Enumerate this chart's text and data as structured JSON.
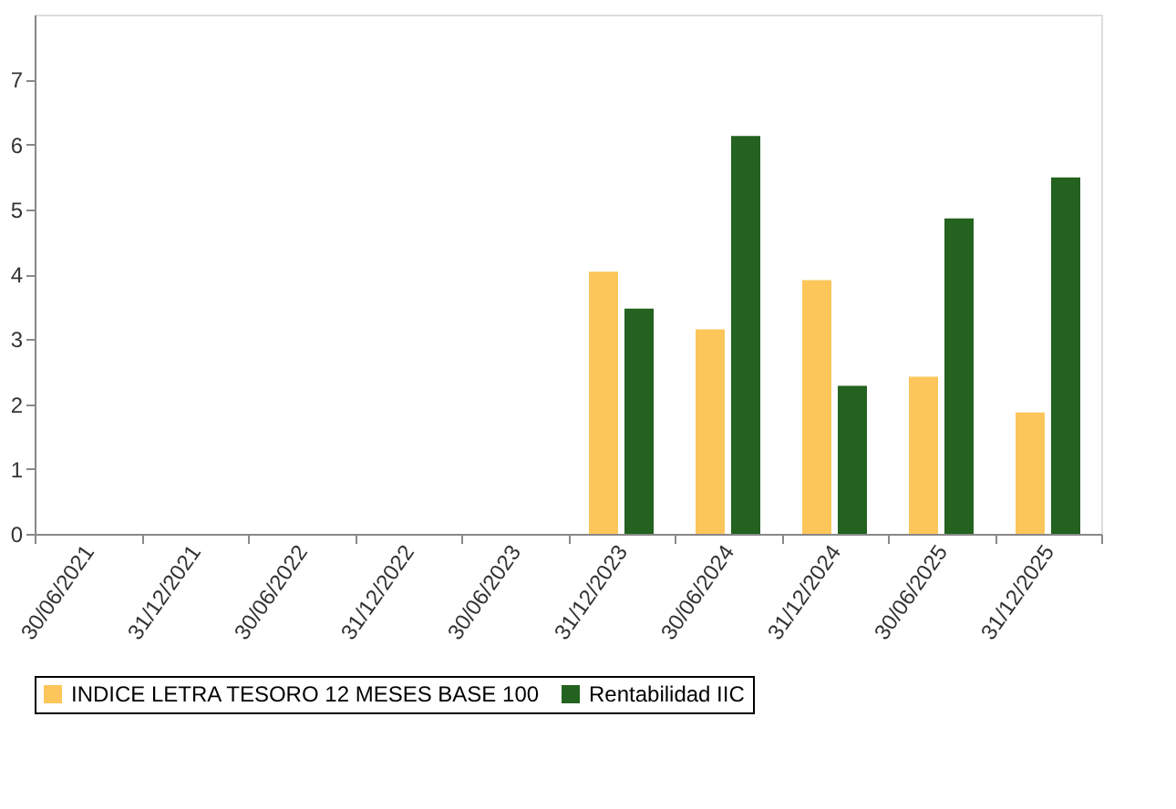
{
  "chart_data": {
    "type": "bar",
    "categories": [
      "30/06/2021",
      "31/12/2021",
      "30/06/2022",
      "31/12/2022",
      "30/06/2023",
      "31/12/2023",
      "30/06/2024",
      "31/12/2024",
      "30/06/2025",
      "31/12/2025"
    ],
    "series": [
      {
        "name": "INDICE LETRA TESORO 12 MESES BASE 100",
        "color": "#fcc65a",
        "values": [
          null,
          null,
          null,
          null,
          null,
          4.04,
          3.15,
          3.91,
          2.42,
          1.87
        ]
      },
      {
        "name": "Rentabilidad IIC",
        "color": "#24621f",
        "values": [
          null,
          null,
          null,
          null,
          null,
          3.47,
          6.13,
          2.28,
          4.86,
          5.49
        ]
      }
    ],
    "ylim": [
      0,
      8
    ],
    "yticks": [
      0,
      1,
      2,
      3,
      4,
      5,
      6,
      7
    ],
    "grid": false,
    "legend": "bottom"
  }
}
